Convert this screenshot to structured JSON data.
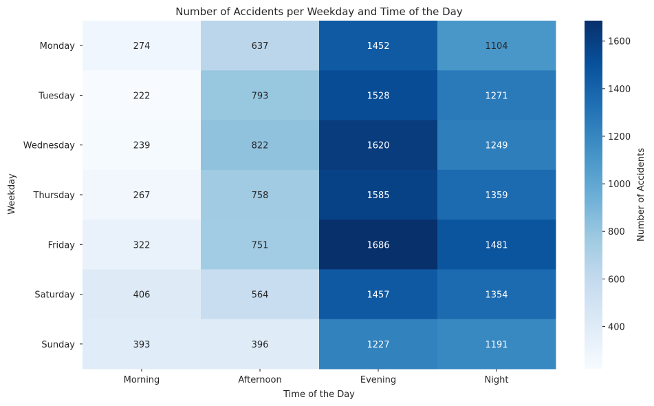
{
  "chart_data": {
    "type": "heatmap",
    "title": "Number of Accidents per Weekday and Time of the Day",
    "xlabel": "Time of the Day",
    "ylabel": "Weekday",
    "x_categories": [
      "Morning",
      "Afternoon",
      "Evening",
      "Night"
    ],
    "y_categories": [
      "Monday",
      "Tuesday",
      "Wednesday",
      "Thursday",
      "Friday",
      "Saturday",
      "Sunday"
    ],
    "values": [
      [
        274,
        637,
        1452,
        1104
      ],
      [
        222,
        793,
        1528,
        1271
      ],
      [
        239,
        822,
        1620,
        1249
      ],
      [
        267,
        758,
        1585,
        1359
      ],
      [
        322,
        751,
        1686,
        1481
      ],
      [
        406,
        564,
        1457,
        1354
      ],
      [
        393,
        396,
        1227,
        1191
      ]
    ],
    "colormap": "Blues",
    "color_range": [
      222,
      1686
    ],
    "colorbar": {
      "label": "Number of Accidents",
      "ticks": [
        400,
        600,
        800,
        1000,
        1200,
        1400,
        1600
      ]
    },
    "annotated": true
  }
}
